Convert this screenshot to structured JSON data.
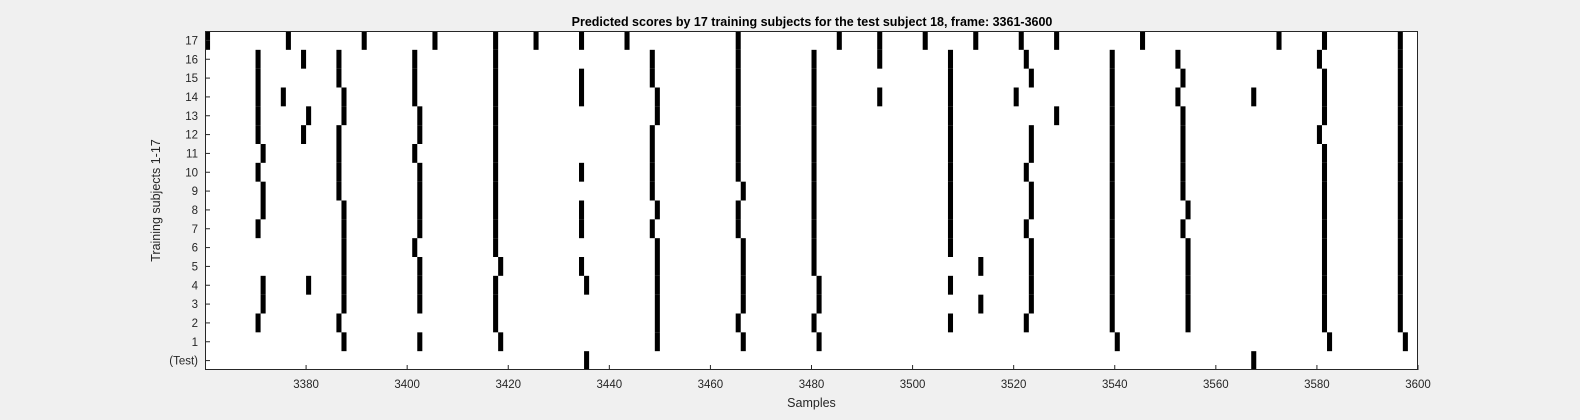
{
  "chart_data": {
    "type": "heatmap",
    "title": "Predicted scores by 17 training subjects for the test subject 18, frame: 3361-3600",
    "xlabel": "Samples",
    "ylabel": "Training subjects 1-17",
    "xlim": [
      3360,
      3600
    ],
    "xticks": [
      3380,
      3400,
      3420,
      3440,
      3460,
      3480,
      3500,
      3520,
      3540,
      3560,
      3580,
      3600
    ],
    "yticklabels": [
      "(Test)",
      "1",
      "2",
      "3",
      "4",
      "5",
      "6",
      "7",
      "8",
      "9",
      "10",
      "11",
      "12",
      "13",
      "14",
      "15",
      "16",
      "17"
    ],
    "colors": {
      "background": "#ffffff",
      "marker": "#000000"
    },
    "rows": [
      {
        "label": "(Test)",
        "samples": [
          3436,
          3568
        ]
      },
      {
        "label": "1",
        "samples": [
          3388,
          3403,
          3419,
          3450,
          3467,
          3482,
          3541,
          3583,
          3598
        ]
      },
      {
        "label": "2",
        "samples": [
          3371,
          3387,
          3418,
          3450,
          3466,
          3481,
          3508,
          3523,
          3540,
          3555,
          3582,
          3597
        ]
      },
      {
        "label": "3",
        "samples": [
          3372,
          3388,
          3403,
          3418,
          3450,
          3467,
          3482,
          3514,
          3524,
          3540,
          3555,
          3582,
          3597
        ]
      },
      {
        "label": "4",
        "samples": [
          3372,
          3381,
          3388,
          3403,
          3418,
          3436,
          3450,
          3467,
          3482,
          3508,
          3524,
          3540,
          3555,
          3582,
          3597
        ]
      },
      {
        "label": "5",
        "samples": [
          3388,
          3403,
          3419,
          3435,
          3450,
          3467,
          3481,
          3514,
          3524,
          3540,
          3555,
          3582,
          3597
        ]
      },
      {
        "label": "6",
        "samples": [
          3388,
          3402,
          3418,
          3450,
          3467,
          3481,
          3508,
          3524,
          3540,
          3555,
          3582,
          3597
        ]
      },
      {
        "label": "7",
        "samples": [
          3371,
          3388,
          3403,
          3418,
          3435,
          3449,
          3466,
          3481,
          3508,
          3523,
          3540,
          3554,
          3582,
          3597
        ]
      },
      {
        "label": "8",
        "samples": [
          3372,
          3388,
          3403,
          3418,
          3435,
          3450,
          3466,
          3481,
          3508,
          3524,
          3540,
          3555,
          3582,
          3597
        ]
      },
      {
        "label": "9",
        "samples": [
          3372,
          3387,
          3403,
          3418,
          3449,
          3467,
          3481,
          3508,
          3524,
          3540,
          3554,
          3582,
          3597
        ]
      },
      {
        "label": "10",
        "samples": [
          3371,
          3387,
          3403,
          3418,
          3435,
          3449,
          3466,
          3481,
          3508,
          3523,
          3540,
          3554,
          3582,
          3597
        ]
      },
      {
        "label": "11",
        "samples": [
          3372,
          3387,
          3402,
          3418,
          3449,
          3466,
          3481,
          3508,
          3524,
          3540,
          3554,
          3582,
          3597
        ]
      },
      {
        "label": "12",
        "samples": [
          3371,
          3380,
          3387,
          3403,
          3418,
          3449,
          3466,
          3481,
          3508,
          3524,
          3540,
          3554,
          3581,
          3597
        ]
      },
      {
        "label": "13",
        "samples": [
          3371,
          3381,
          3388,
          3403,
          3418,
          3450,
          3466,
          3481,
          3508,
          3529,
          3540,
          3554,
          3582,
          3597
        ]
      },
      {
        "label": "14",
        "samples": [
          3371,
          3376,
          3388,
          3402,
          3418,
          3435,
          3450,
          3466,
          3481,
          3494,
          3508,
          3521,
          3540,
          3553,
          3568,
          3582,
          3597
        ]
      },
      {
        "label": "15",
        "samples": [
          3371,
          3387,
          3402,
          3418,
          3435,
          3449,
          3466,
          3481,
          3508,
          3524,
          3540,
          3554,
          3582,
          3597
        ]
      },
      {
        "label": "16",
        "samples": [
          3371,
          3380,
          3387,
          3402,
          3418,
          3449,
          3466,
          3481,
          3494,
          3508,
          3523,
          3540,
          3553,
          3581,
          3597
        ]
      },
      {
        "label": "17",
        "samples": [
          3361,
          3377,
          3392,
          3406,
          3418,
          3426,
          3435,
          3444,
          3466,
          3486,
          3494,
          3503,
          3513,
          3522,
          3529,
          3546,
          3573,
          3582,
          3597
        ]
      }
    ]
  }
}
